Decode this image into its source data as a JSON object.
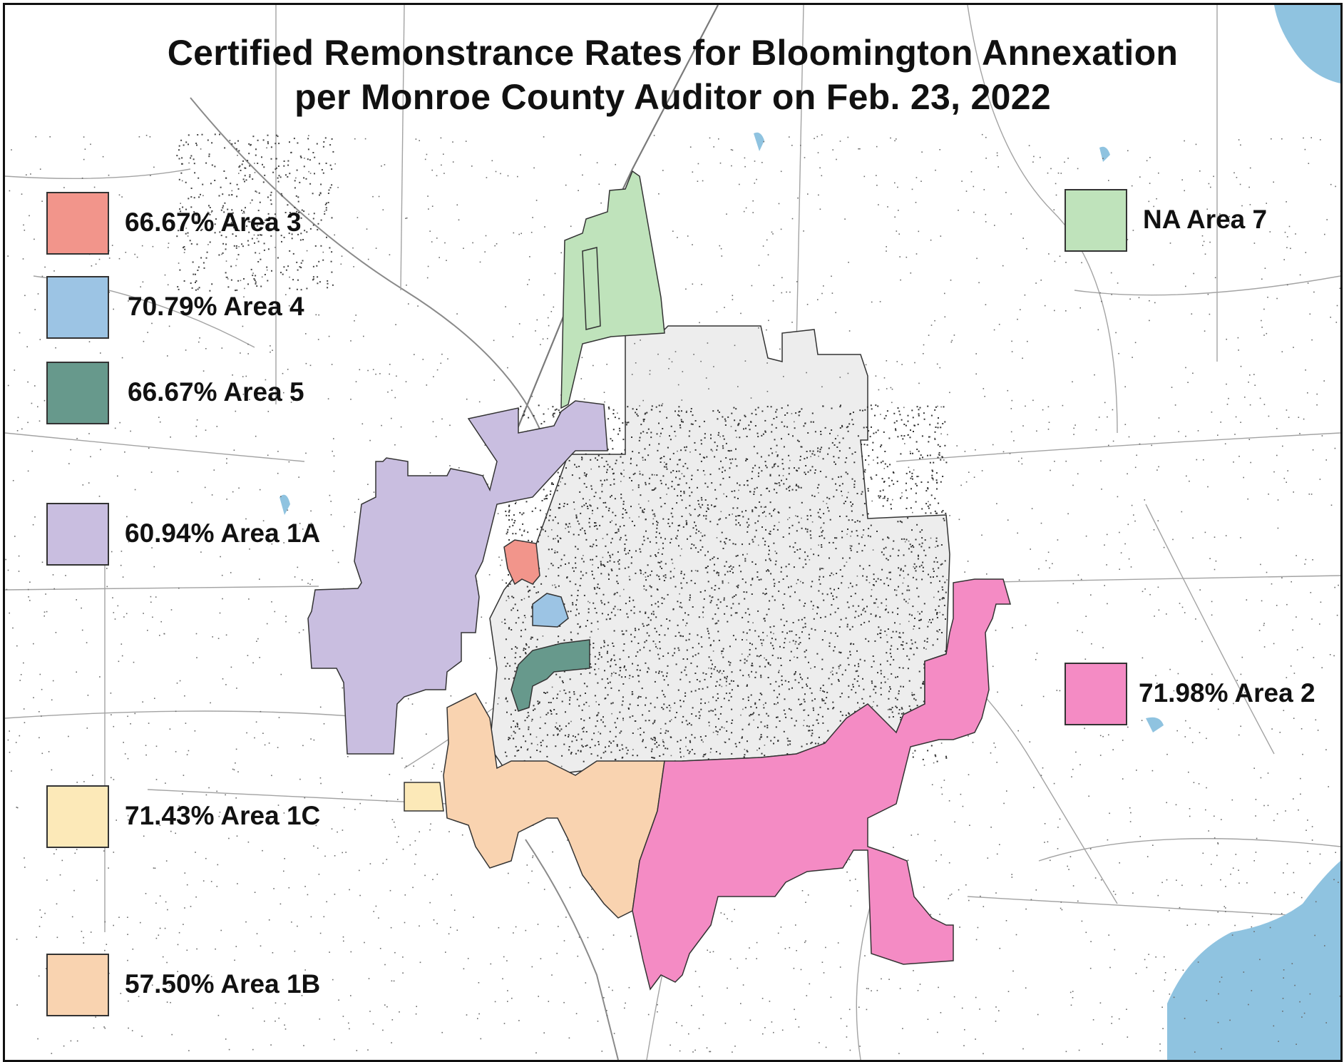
{
  "title": {
    "line1": "Certified Remonstrance Rates for Bloomington Annexation",
    "line2": "per Monroe County Auditor on Feb. 23, 2022"
  },
  "legend": [
    {
      "id": "area-3",
      "label": "66.67% Area 3",
      "rate": 66.67,
      "color": "#F2958B"
    },
    {
      "id": "area-4",
      "label": "70.79% Area 4",
      "rate": 70.79,
      "color": "#9CC4E4"
    },
    {
      "id": "area-5",
      "label": "66.67% Area 5",
      "rate": 66.67,
      "color": "#67998C"
    },
    {
      "id": "area-1a",
      "label": "60.94% Area 1A",
      "rate": 60.94,
      "color": "#C9BEE0"
    },
    {
      "id": "area-1c",
      "label": "71.43% Area 1C",
      "rate": 71.43,
      "color": "#FCE9B8"
    },
    {
      "id": "area-1b",
      "label": "57.50% Area 1B",
      "rate": 57.5,
      "color": "#F9D3B0"
    },
    {
      "id": "area-7",
      "label": "NA Area 7",
      "rate": null,
      "color": "#BFE3BB"
    },
    {
      "id": "area-2",
      "label": "71.98% Area 2",
      "rate": 71.98,
      "color": "#F48BC4"
    }
  ],
  "map": {
    "city_fill": "#EDEDED",
    "water_color": "#8FC3E0",
    "road_color": "#9A9A9A"
  }
}
